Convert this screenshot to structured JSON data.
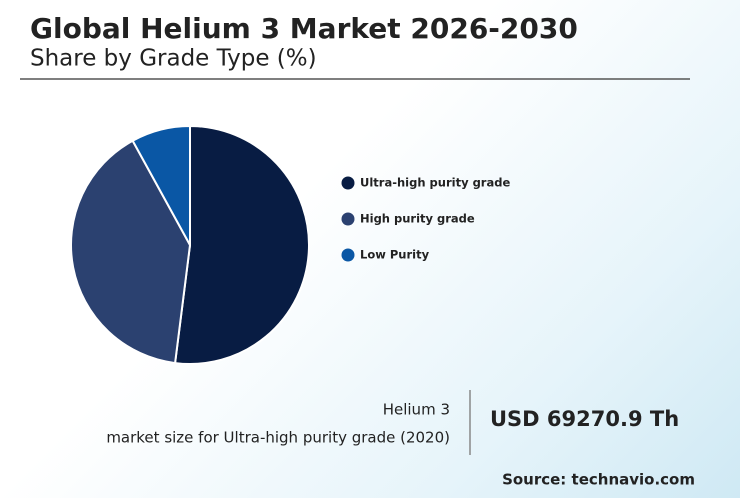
{
  "chart_data": {
    "type": "pie",
    "title": "Global Helium 3 Market 2026-2030",
    "subtitle": "Share by Grade Type (%)",
    "categories": [
      "Ultra-high purity grade",
      "High purity grade",
      "Low Purity"
    ],
    "values": [
      52,
      40,
      8
    ],
    "colors": [
      "#081c43",
      "#2b4170",
      "#0a57a5"
    ]
  },
  "info": {
    "label_line1": "Helium 3",
    "label_line2": "market size for Ultra-high purity grade (2020)",
    "value": "USD 69270.9 Th"
  },
  "source": "Source: technavio.com"
}
